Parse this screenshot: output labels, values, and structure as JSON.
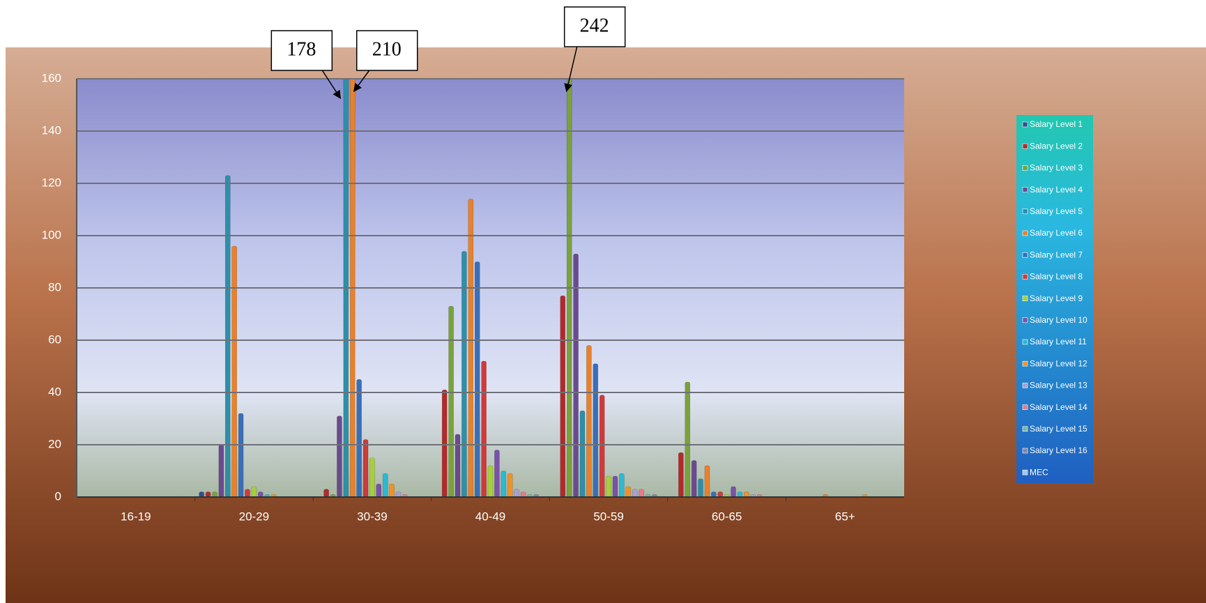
{
  "chart_data": {
    "type": "bar",
    "categories": [
      "16-19",
      "20-29",
      "30-39",
      "40-49",
      "50-59",
      "60-65",
      "65+"
    ],
    "ylim": [
      0,
      160
    ],
    "yticks": [
      0,
      20,
      40,
      60,
      80,
      100,
      120,
      140,
      160
    ],
    "grid": true,
    "series": [
      {
        "name": "Salary Level 1",
        "color": "#2f4f8f",
        "values": [
          0,
          2,
          0,
          0,
          0,
          0,
          0
        ]
      },
      {
        "name": "Salary Level 2",
        "color": "#b22a2a",
        "values": [
          0,
          2,
          3,
          41,
          77,
          17,
          0
        ]
      },
      {
        "name": "Salary Level 3",
        "color": "#7aa23a",
        "values": [
          0,
          2,
          1,
          73,
          242,
          44,
          0
        ],
        "value_labels": [
          null,
          null,
          null,
          null,
          "242",
          null,
          null
        ]
      },
      {
        "name": "Salary Level 4",
        "color": "#6b4a8f",
        "values": [
          0,
          20,
          31,
          24,
          93,
          14,
          0
        ]
      },
      {
        "name": "Salary Level 5",
        "color": "#2e8fa8",
        "values": [
          0,
          123,
          178,
          94,
          33,
          7,
          0
        ],
        "value_labels": [
          null,
          null,
          "178",
          null,
          null,
          null,
          null
        ]
      },
      {
        "name": "Salary Level 6",
        "color": "#e8812a",
        "values": [
          0,
          96,
          210,
          114,
          58,
          12,
          1
        ],
        "value_labels": [
          null,
          null,
          "210",
          null,
          null,
          null,
          null
        ]
      },
      {
        "name": "Salary Level 7",
        "color": "#3a6fb8",
        "values": [
          0,
          32,
          45,
          90,
          51,
          2,
          0
        ]
      },
      {
        "name": "Salary Level 8",
        "color": "#d03a3a",
        "values": [
          0,
          3,
          22,
          52,
          39,
          2,
          0
        ]
      },
      {
        "name": "Salary Level 9",
        "color": "#a8cf3a",
        "values": [
          0,
          4,
          15,
          12,
          8,
          1,
          0
        ]
      },
      {
        "name": "Salary Level 10",
        "color": "#7a52a8",
        "values": [
          0,
          2,
          5,
          18,
          8,
          4,
          0
        ]
      },
      {
        "name": "Salary Level 11",
        "color": "#2fb8d0",
        "values": [
          0,
          1,
          9,
          10,
          9,
          2,
          0
        ]
      },
      {
        "name": "Salary Level 12",
        "color": "#f0922a",
        "values": [
          0,
          1,
          5,
          9,
          4,
          2,
          1
        ]
      },
      {
        "name": "Salary Level 13",
        "color": "#a8a0d0",
        "values": [
          0,
          0,
          2,
          3,
          3,
          1,
          0
        ]
      },
      {
        "name": "Salary Level 14",
        "color": "#e87a8a",
        "values": [
          0,
          0,
          1,
          2,
          3,
          1,
          0
        ]
      },
      {
        "name": "Salary Level 15",
        "color": "#7ab8a0",
        "values": [
          0,
          0,
          0,
          1,
          1,
          0,
          0
        ]
      },
      {
        "name": "Salary Level 16",
        "color": "#7a8ab0",
        "values": [
          0,
          0,
          0,
          1,
          1,
          0,
          0
        ]
      },
      {
        "name": "MEC",
        "color": "#a0c8e8",
        "values": [
          0,
          0,
          0,
          0,
          0,
          0,
          0
        ]
      }
    ]
  }
}
